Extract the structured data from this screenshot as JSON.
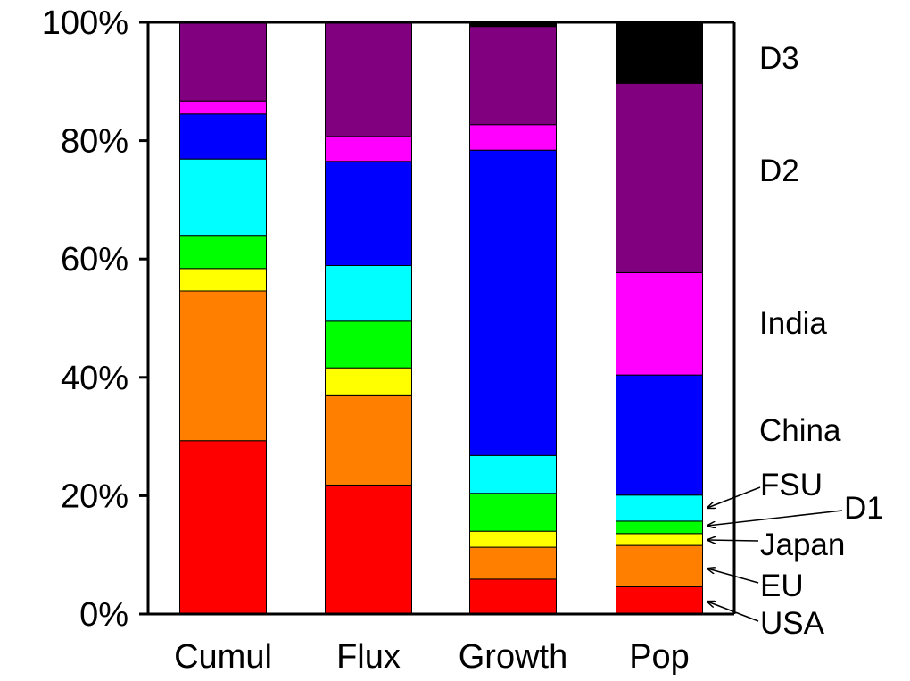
{
  "chart_data": {
    "type": "bar",
    "stacked": true,
    "percent": true,
    "title": "",
    "xlabel": "",
    "ylabel": "",
    "ylim": [
      0,
      100
    ],
    "yticks": [
      "0%",
      "20%",
      "40%",
      "60%",
      "80%",
      "100%"
    ],
    "ytick_values": [
      0,
      20,
      40,
      60,
      80,
      100
    ],
    "grid": false,
    "legend": "right",
    "categories": [
      "Cumul",
      "Flux",
      "Growth",
      "Pop"
    ],
    "series": [
      {
        "name": "USA",
        "color": "#ff0000",
        "values": [
          29.3,
          21.8,
          5.9,
          4.6
        ]
      },
      {
        "name": "EU",
        "color": "#ff8000",
        "values": [
          25.3,
          15.1,
          5.4,
          7.0
        ]
      },
      {
        "name": "Japan",
        "color": "#ffff00",
        "values": [
          3.8,
          4.7,
          2.7,
          2.0
        ]
      },
      {
        "name": "D1",
        "color": "#00ff00",
        "values": [
          5.6,
          7.9,
          6.4,
          2.1
        ]
      },
      {
        "name": "FSU",
        "color": "#00ffff",
        "values": [
          12.9,
          9.4,
          6.4,
          4.4
        ]
      },
      {
        "name": "China",
        "color": "#0000ff",
        "values": [
          7.6,
          17.6,
          51.6,
          20.3
        ]
      },
      {
        "name": "India",
        "color": "#ff00ff",
        "values": [
          2.2,
          4.2,
          4.3,
          17.3
        ]
      },
      {
        "name": "D2",
        "color": "#800080",
        "values": [
          13.3,
          19.3,
          16.6,
          32.0
        ]
      },
      {
        "name": "D3",
        "color": "#000000",
        "values": [
          0.0,
          0.0,
          0.7,
          10.3
        ]
      }
    ]
  }
}
